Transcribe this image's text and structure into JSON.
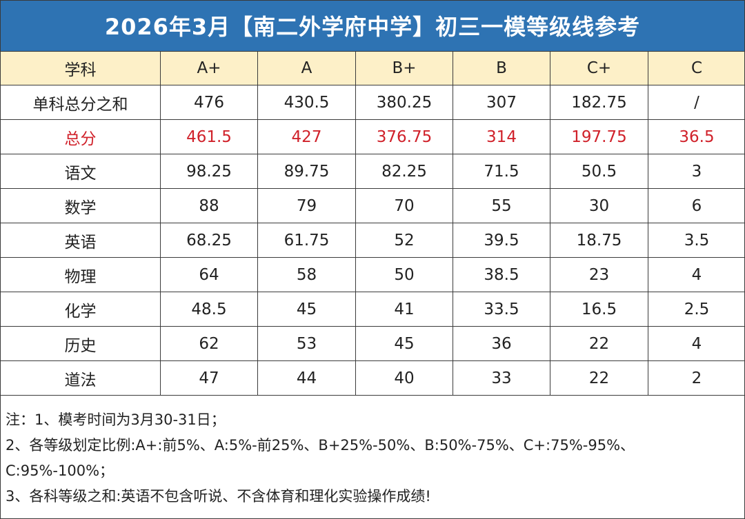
{
  "title": "2026年3月【南二外学府中学】初三一模等级线参考",
  "table": {
    "header": [
      "学科",
      "A+",
      "A",
      "B+",
      "B",
      "C+",
      "C"
    ],
    "rows": [
      [
        "单科总分之和",
        "476",
        "430.5",
        "380.25",
        "307",
        "182.75",
        "/"
      ],
      [
        "总分",
        "461.5",
        "427",
        "376.75",
        "314",
        "197.75",
        "36.5"
      ],
      [
        "语文",
        "98.25",
        "89.75",
        "82.25",
        "71.5",
        "50.5",
        "3"
      ],
      [
        "数学",
        "88",
        "79",
        "70",
        "55",
        "30",
        "6"
      ],
      [
        "英语",
        "68.25",
        "61.75",
        "52",
        "39.5",
        "18.75",
        "3.5"
      ],
      [
        "物理",
        "64",
        "58",
        "50",
        "38.5",
        "23",
        "4"
      ],
      [
        "化学",
        "48.5",
        "45",
        "41",
        "33.5",
        "16.5",
        "2.5"
      ],
      [
        "历史",
        "62",
        "53",
        "45",
        "36",
        "22",
        "4"
      ],
      [
        "道法",
        "47",
        "44",
        "40",
        "33",
        "22",
        "2"
      ]
    ]
  },
  "notes": [
    "注：1、模考时间为3月30-31日；",
    "2、各等级划定比例:A+:前5%、A:5%-前25%、B+25%-50%、B:50%-75%、C+:75%-95%、",
    "C:95%-100%；",
    "3、各科等级之和:英语不包含听说、不含体育和理化实验操作成绩!"
  ],
  "colors": {
    "title_bg": "#2e73b3",
    "header_bg": "#fdf0c8",
    "highlight_text": "#d0212a"
  }
}
